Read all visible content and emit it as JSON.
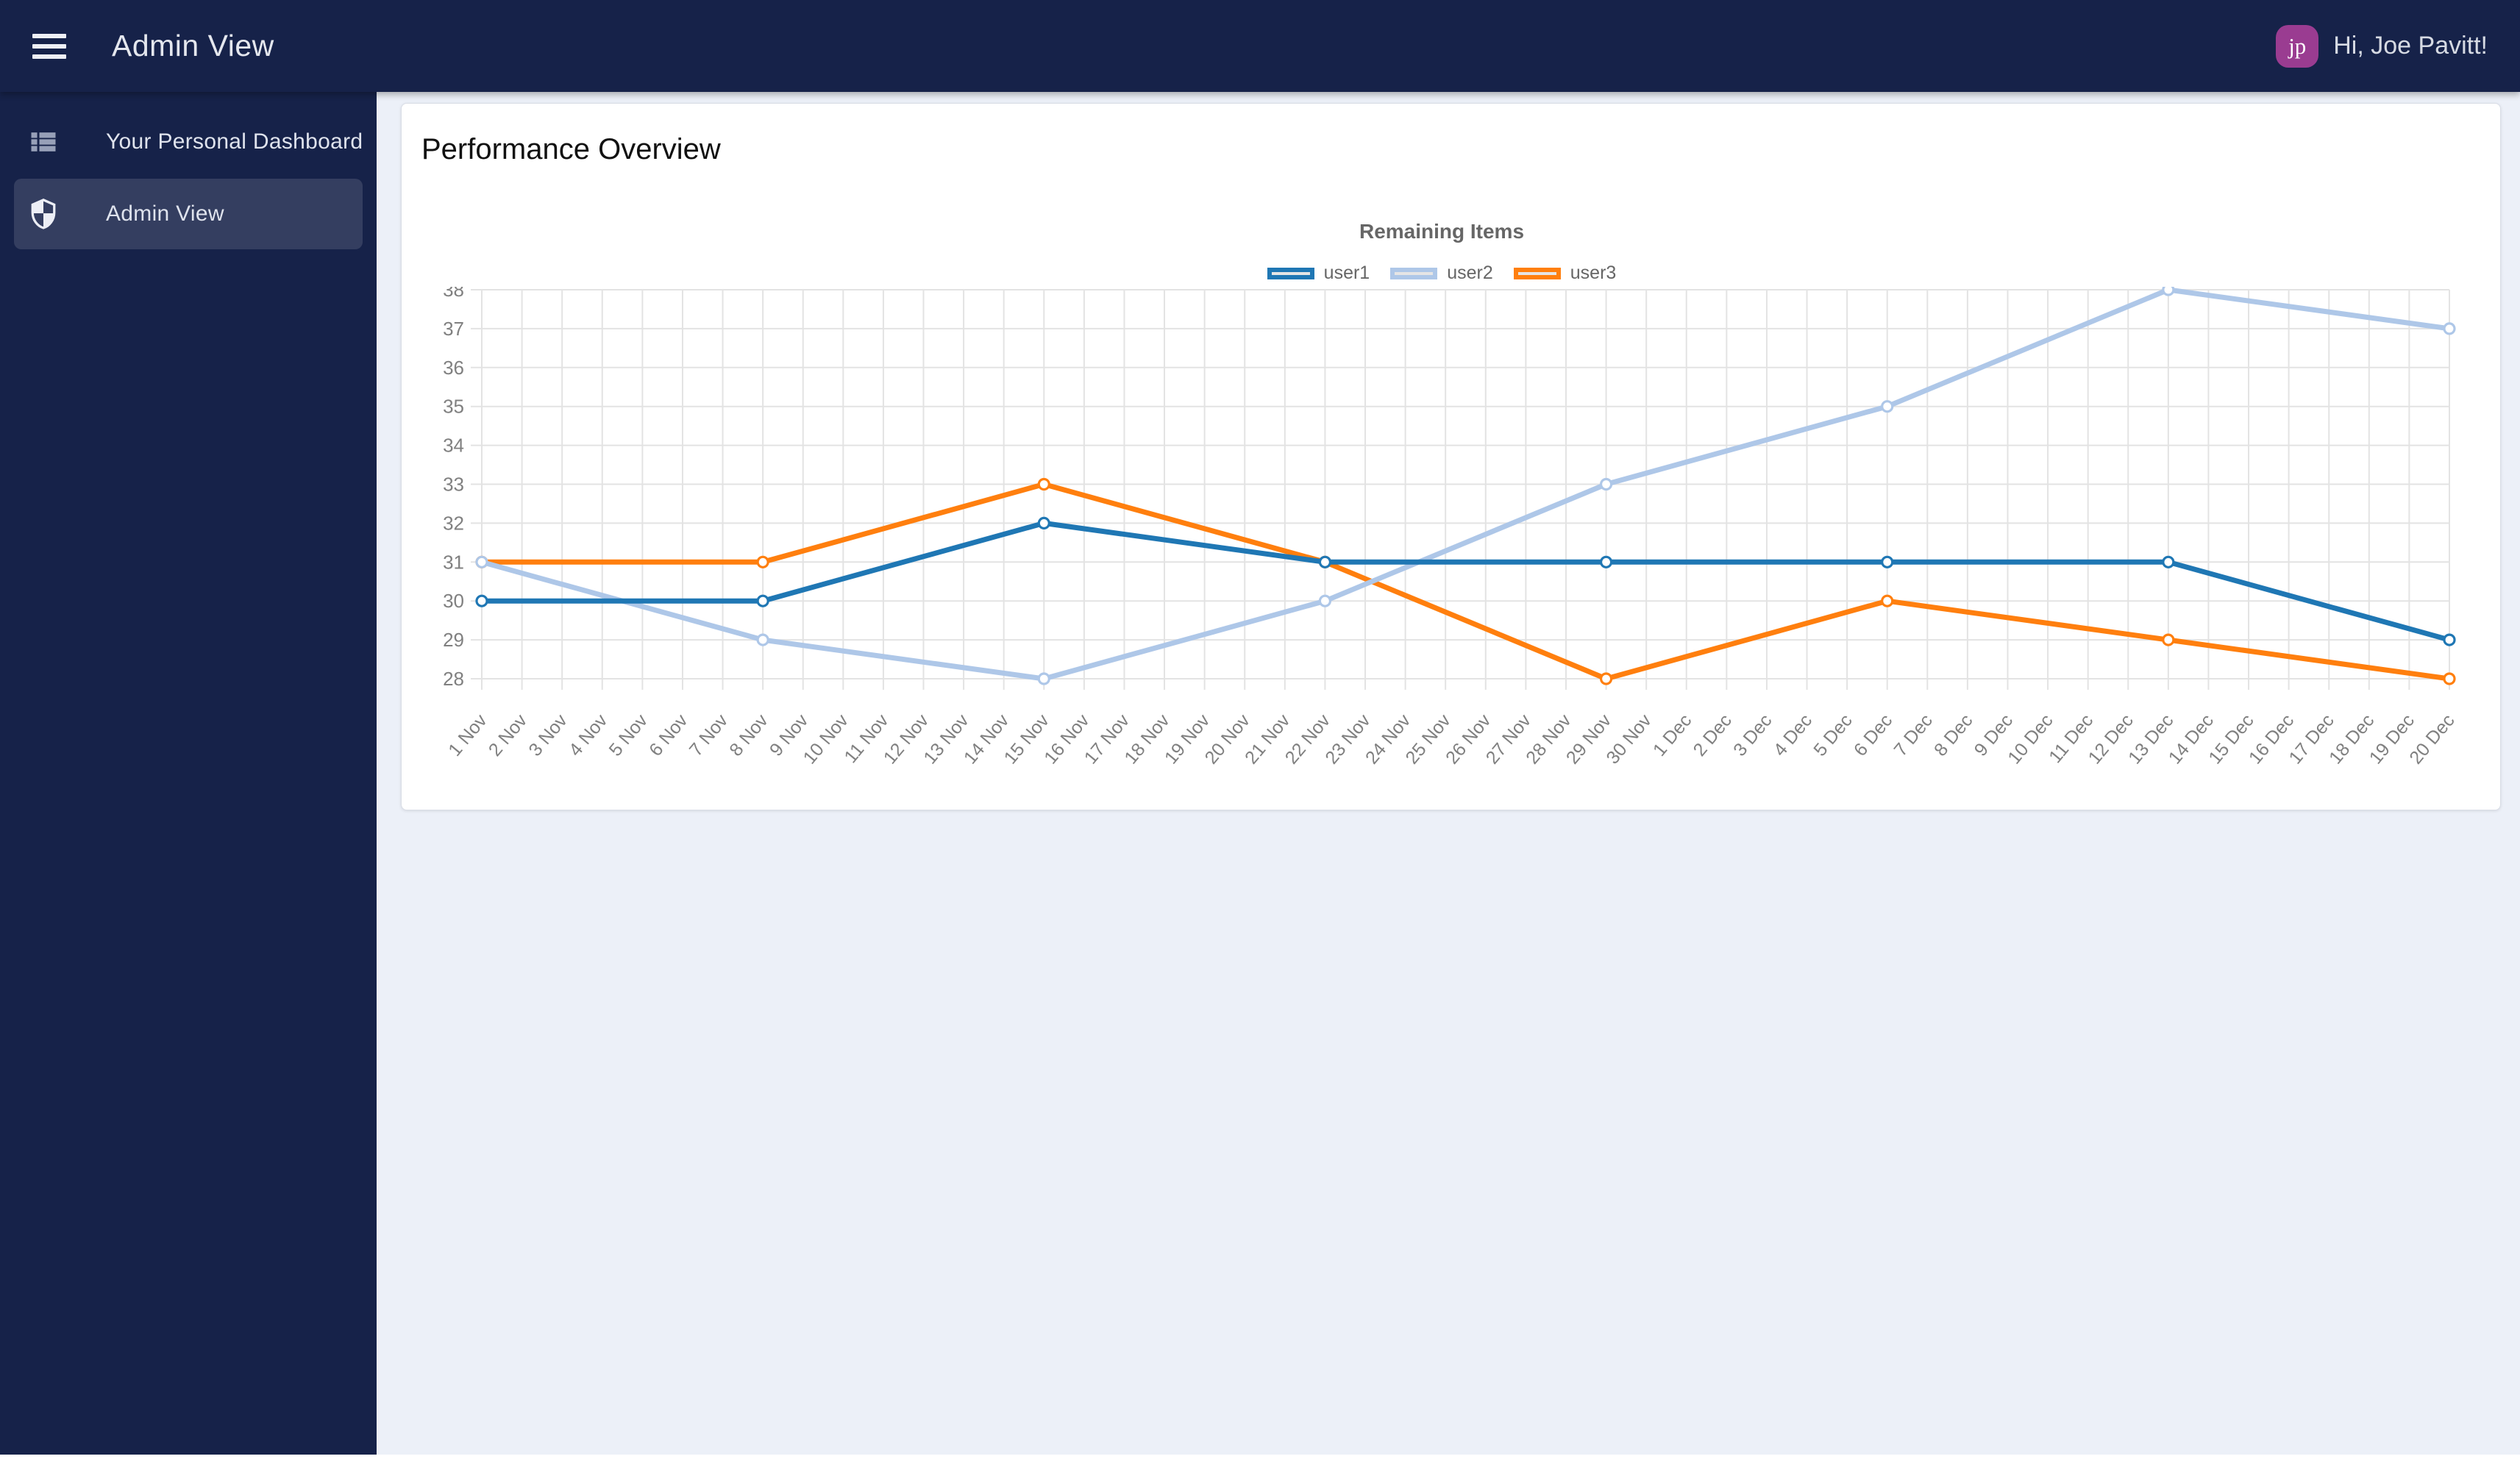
{
  "topbar": {
    "title": "Admin View",
    "greeting": "Hi, Joe Pavitt!",
    "avatar_initials": "jp"
  },
  "sidebar": {
    "items": [
      {
        "label": "Your Personal Dashboard",
        "icon": "view-list",
        "active": false
      },
      {
        "label": "Admin View",
        "icon": "shield",
        "active": true
      }
    ]
  },
  "main": {
    "card_title": "Performance Overview"
  },
  "chart_data": {
    "type": "line",
    "title": "Remaining Items",
    "legend_position": "top",
    "grid": true,
    "ylim": [
      28,
      38
    ],
    "ytick_step": 1,
    "x_categories": [
      "1 Nov",
      "2 Nov",
      "3 Nov",
      "4 Nov",
      "5 Nov",
      "6 Nov",
      "7 Nov",
      "8 Nov",
      "9 Nov",
      "10 Nov",
      "11 Nov",
      "12 Nov",
      "13 Nov",
      "14 Nov",
      "15 Nov",
      "16 Nov",
      "17 Nov",
      "18 Nov",
      "19 Nov",
      "20 Nov",
      "21 Nov",
      "22 Nov",
      "23 Nov",
      "24 Nov",
      "25 Nov",
      "26 Nov",
      "27 Nov",
      "28 Nov",
      "29 Nov",
      "30 Nov",
      "1 Dec",
      "2 Dec",
      "3 Dec",
      "4 Dec",
      "5 Dec",
      "6 Dec",
      "7 Dec",
      "8 Dec",
      "9 Dec",
      "10 Dec",
      "11 Dec",
      "12 Dec",
      "13 Dec",
      "14 Dec",
      "15 Dec",
      "16 Dec",
      "17 Dec",
      "18 Dec",
      "19 Dec",
      "20 Dec"
    ],
    "point_dates": [
      "1 Nov",
      "8 Nov",
      "15 Nov",
      "22 Nov",
      "29 Nov",
      "6 Dec",
      "13 Dec",
      "20 Dec"
    ],
    "series": [
      {
        "name": "user1",
        "color": "#1f77b4",
        "values": [
          30,
          30,
          32,
          31,
          31,
          31,
          31,
          29
        ]
      },
      {
        "name": "user2",
        "color": "#aec7e8",
        "values": [
          31,
          29,
          28,
          30,
          33,
          35,
          38,
          37
        ]
      },
      {
        "name": "user3",
        "color": "#ff7f0e",
        "values": [
          31,
          31,
          33,
          31,
          28,
          30,
          29,
          28
        ]
      }
    ],
    "grid_color": "#e3e3e3",
    "axis_label_color": "#808080",
    "marker_fill": "#ffffff"
  },
  "colors": {
    "topbar_bg": "#162249",
    "sidebar_bg": "#162249",
    "main_bg": "#ecf0f8",
    "card_bg": "#ffffff",
    "avatar_bg": "#9a3c91"
  }
}
